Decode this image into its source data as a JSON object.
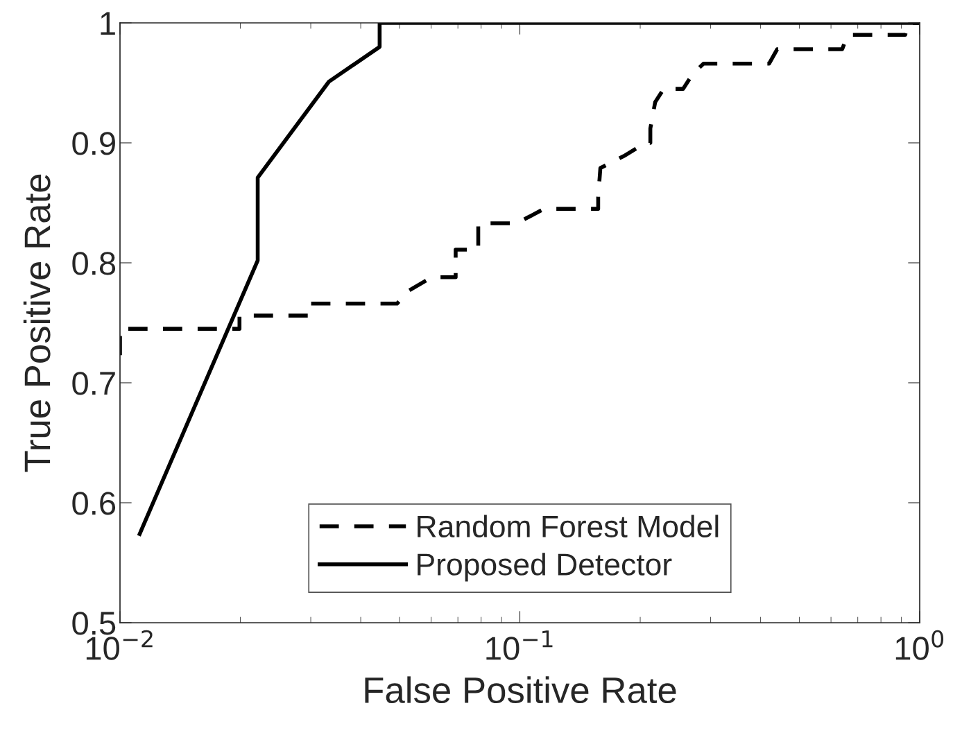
{
  "chart_data": {
    "type": "line",
    "xlabel": "False Positive Rate",
    "ylabel": "True Positive Rate",
    "log": "x",
    "xlim": [
      0.01,
      1
    ],
    "ylim": [
      0.5,
      1
    ],
    "xticks": [
      {
        "value": 0.01,
        "label": "10$^{−2}$"
      },
      {
        "value": 0.1,
        "label": "10$^{−1}$"
      },
      {
        "value": 1,
        "label": "10$^{0}$"
      }
    ],
    "yticks": [
      0.5,
      0.6,
      0.7,
      0.8,
      0.9,
      1
    ],
    "legend": "bottom",
    "grid": false,
    "marker": "none",
    "series": [
      {
        "name": "Random Forest Model",
        "color": "#000000",
        "line_style": "dashed",
        "x": [
          0.01,
          0.01,
          0.0199,
          0.0199,
          0.0297,
          0.0297,
          0.0493,
          0.0529,
          0.0602,
          0.0691,
          0.0691,
          0.0787,
          0.0787,
          0.0983,
          0.115,
          0.157,
          0.157,
          0.159,
          0.182,
          0.206,
          0.212,
          0.212,
          0.218,
          0.229,
          0.256,
          0.27,
          0.288,
          0.42,
          0.44,
          0.64,
          0.66,
          0.92,
          0.935,
          1
        ],
        "values": [
          0.723,
          0.745,
          0.745,
          0.756,
          0.756,
          0.766,
          0.766,
          0.777,
          0.788,
          0.788,
          0.811,
          0.811,
          0.833,
          0.833,
          0.845,
          0.845,
          0.855,
          0.879,
          0.889,
          0.9,
          0.9,
          0.912,
          0.934,
          0.945,
          0.945,
          0.957,
          0.966,
          0.966,
          0.978,
          0.978,
          0.99,
          0.99,
          1,
          1
        ]
      },
      {
        "name": "Proposed Detector",
        "color": "#000000",
        "line_style": "solid",
        "x": [
          0.0112,
          0.0221,
          0.0221,
          0.0333,
          0.0446,
          0.0446,
          1
        ],
        "values": [
          0.574,
          0.802,
          0.871,
          0.951,
          0.98,
          1,
          1
        ]
      }
    ]
  }
}
